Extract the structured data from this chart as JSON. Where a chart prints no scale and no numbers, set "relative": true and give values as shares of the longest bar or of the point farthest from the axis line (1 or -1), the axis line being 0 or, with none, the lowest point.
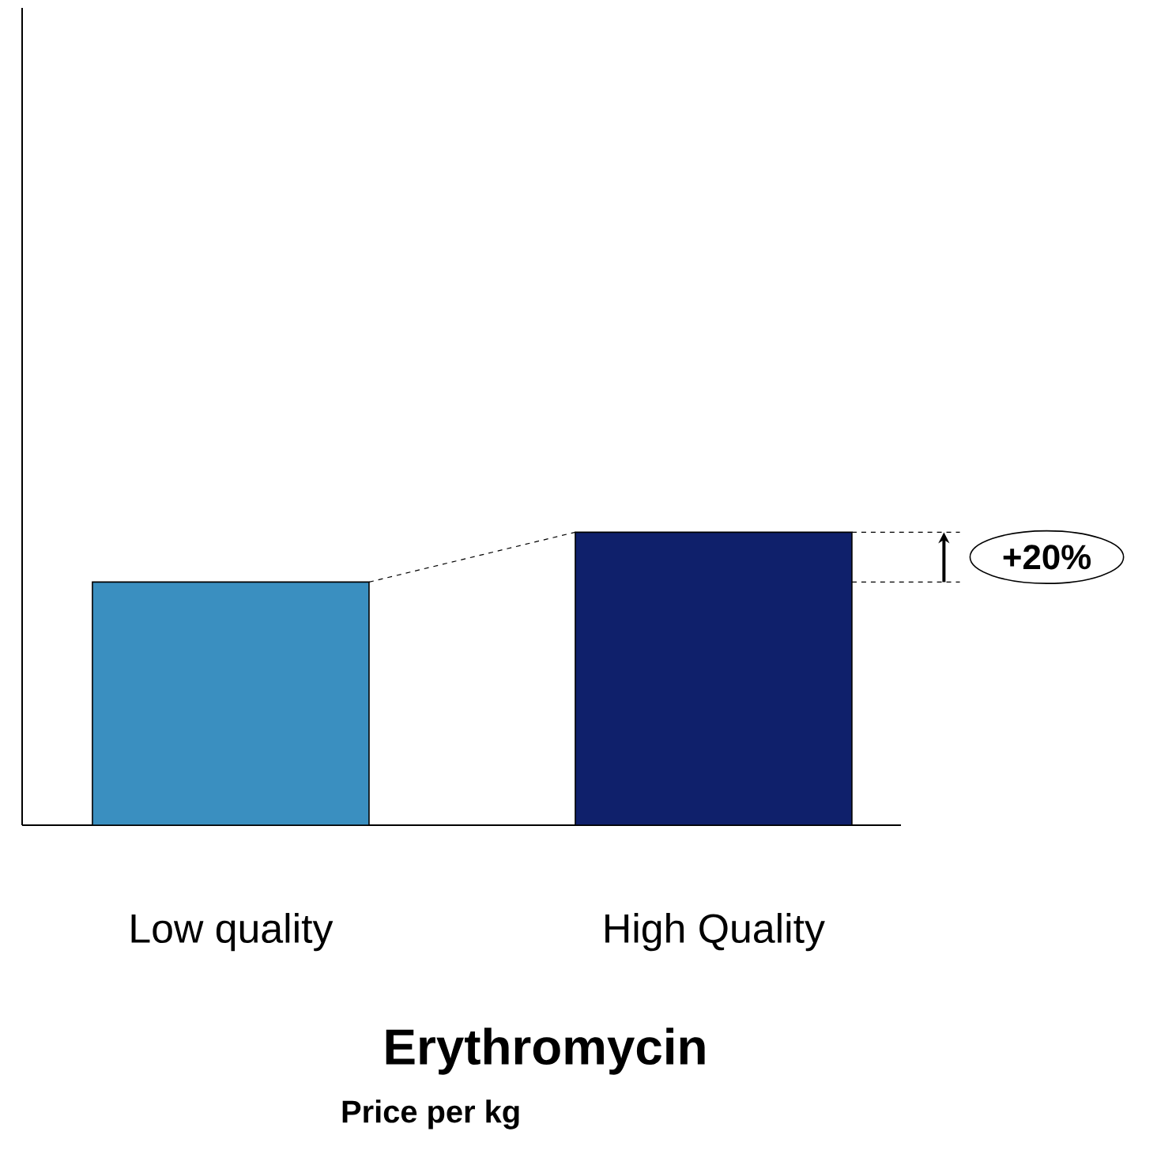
{
  "chart_data": {
    "type": "bar",
    "relative": true,
    "title": "Erythromycin",
    "subtitle": "Price per kg",
    "categories": [
      "Low quality",
      "High Quality"
    ],
    "values": [
      0.83,
      1
    ],
    "colors": [
      "#3a8fc0",
      "#0f206b"
    ],
    "annotations": [
      "+20%"
    ]
  }
}
